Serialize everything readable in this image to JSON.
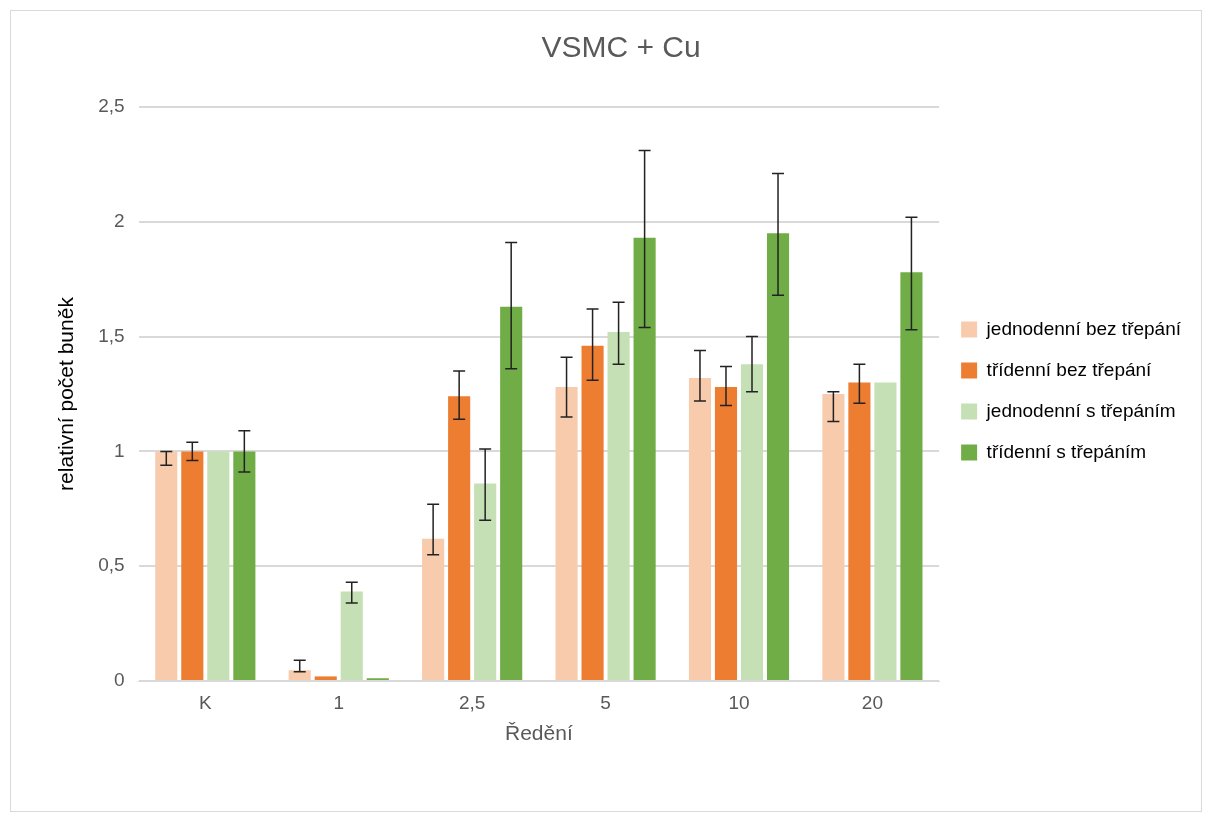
{
  "chart_data": {
    "type": "bar",
    "title": "VSMC + Cu",
    "xlabel": "Ředění",
    "ylabel": "relativní počet buněk",
    "categories": [
      "K",
      "1",
      "2,5",
      "5",
      "10",
      "20"
    ],
    "series": [
      {
        "name": "jednodenní bez třepání",
        "color": "#f8cbad",
        "values": [
          1,
          0.047,
          0.62,
          1.28,
          1.32,
          1.25
        ],
        "errors": [
          [
            0.94,
            1
          ],
          [
            0.04,
            0.09
          ],
          [
            0.55,
            0.77
          ],
          [
            1.15,
            1.41
          ],
          [
            1.22,
            1.44
          ],
          [
            1.13,
            1.26
          ]
        ]
      },
      {
        "name": "třídenní bez třepání",
        "color": "#ed7d31",
        "values": [
          1,
          0.02,
          1.24,
          1.46,
          1.28,
          1.3
        ],
        "errors": [
          [
            0.96,
            1.04
          ],
          null,
          [
            1.14,
            1.35
          ],
          [
            1.31,
            1.62
          ],
          [
            1.2,
            1.37
          ],
          [
            1.21,
            1.38
          ]
        ]
      },
      {
        "name": "jednodenní s třepáním",
        "color": "#c5e0b4",
        "values": [
          1,
          0.39,
          0.86,
          1.52,
          1.38,
          1.3
        ],
        "errors": [
          null,
          [
            0.34,
            0.43
          ],
          [
            0.7,
            1.01
          ],
          [
            1.38,
            1.65
          ],
          [
            1.26,
            1.5
          ],
          null
        ]
      },
      {
        "name": "třídenní s třepáním",
        "color": "#70ad47",
        "values": [
          1,
          0.012,
          1.63,
          1.93,
          1.95,
          1.78
        ],
        "errors": [
          [
            0.91,
            1.09
          ],
          null,
          [
            1.36,
            1.91
          ],
          [
            1.54,
            2.31
          ],
          [
            1.68,
            2.21
          ],
          [
            1.53,
            2.02
          ]
        ]
      }
    ],
    "ylim": [
      0,
      2.5
    ],
    "yticks": [
      0,
      {
        "value": 0.5,
        "label": "0,5"
      },
      1,
      {
        "value": 1.5,
        "label": "1,5"
      },
      2,
      {
        "value": 2.5,
        "label": "2,5"
      }
    ],
    "grid": "y",
    "legend": "right"
  }
}
